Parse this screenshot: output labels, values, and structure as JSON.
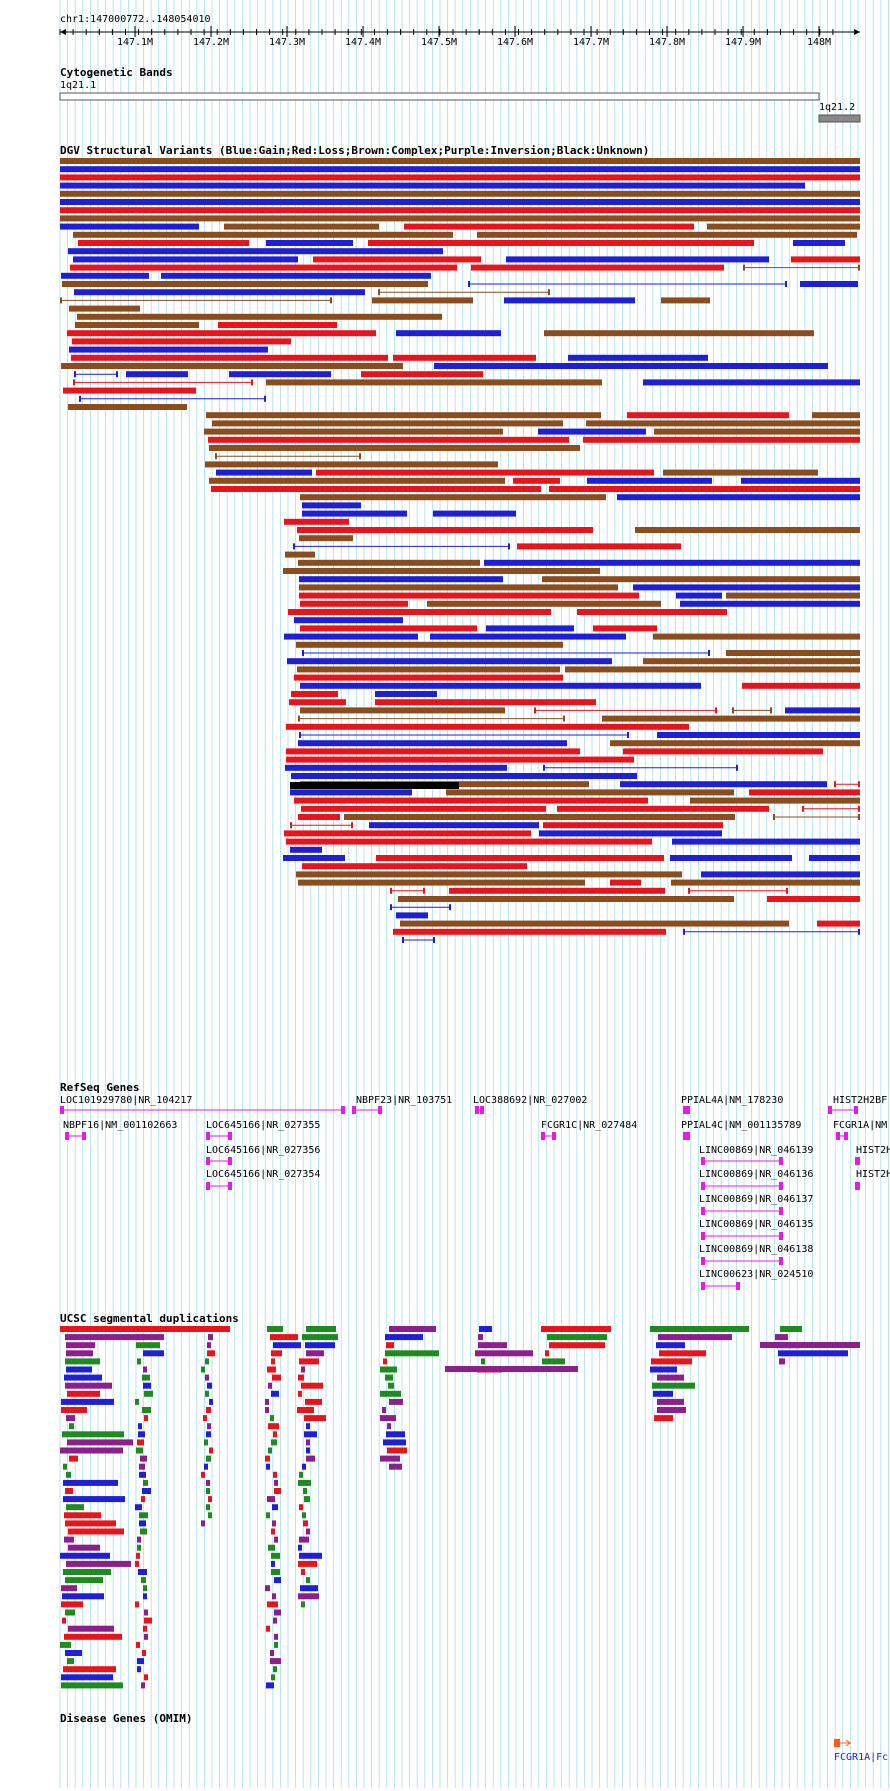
{
  "header": {
    "location": "chr1:147000772..148054010",
    "ruler_ticks": [
      "147.1M",
      "147.2M",
      "147.3M",
      "147.4M",
      "147.5M",
      "147.6M",
      "147.7M",
      "147.8M",
      "147.9M",
      "148M"
    ]
  },
  "colors": {
    "gain": "#1f1fd6",
    "loss": "#e8141c",
    "complex": "#8b4d1e",
    "inversion": "#8b1f8b",
    "unknown": "#000000",
    "gene": "#e61ce6",
    "segdup_green": "#1f8a1f",
    "grid": "#a8dff0",
    "band_gray": "#888888",
    "omim": "#ff5a1e",
    "omim_label": "#1f1fd6"
  },
  "tracks": {
    "cytobands": {
      "title": "Cytogenetic Bands",
      "bands": [
        "1q21.1",
        "1q21.2"
      ]
    },
    "dgv": {
      "title": "DGV Structural Variants (Blue:Gain;Red:Loss;Brown:Complex;Purple:Inversion;Black:Unknown)"
    },
    "refseq": {
      "title": "RefSeq Genes",
      "genes": [
        "LOC101929780|NR_104217",
        "NBPF23|NR_103751",
        "LOC388692|NR_027002",
        "PPIAL4A|NM_178230",
        "HIST2H2BF",
        "NBPF16|NM_001102663",
        "LOC645166|NR_027355",
        "FCGR1C|NR_027484",
        "PPIAL4C|NM_001135789",
        "FCGR1A|NM",
        "LOC645166|NR_027356",
        "LINC00869|NR_046139",
        "HIST2H",
        "LOC645166|NR_027354",
        "LINC00869|NR_046136",
        "HIST2H",
        "LINC00869|NR_046137",
        "LINC00869|NR_046135",
        "LINC00869|NR_046138",
        "LINC00623|NR_024510"
      ]
    },
    "segdups": {
      "title": "UCSC segmental duplications"
    },
    "omim": {
      "title": "Disease Genes (OMIM)",
      "label": "FCGR1A|Fc"
    }
  }
}
